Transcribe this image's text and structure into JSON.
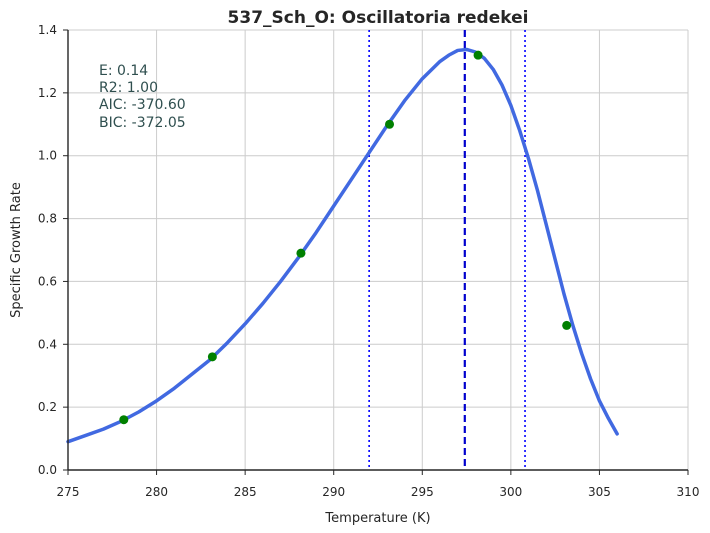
{
  "chart_data": {
    "type": "line",
    "title": "537_Sch_O: Oscillatoria redekei",
    "xlabel": "Temperature (K)",
    "ylabel": "Specific Growth Rate",
    "xlim": [
      275,
      310
    ],
    "ylim": [
      0.0,
      1.4
    ],
    "x_ticks": [
      275,
      280,
      285,
      290,
      295,
      300,
      305,
      310
    ],
    "x_tick_labels": [
      "275",
      "280",
      "285",
      "290",
      "295",
      "300",
      "305",
      "310"
    ],
    "y_ticks": [
      0.0,
      0.2,
      0.4,
      0.6,
      0.8,
      1.0,
      1.2,
      1.4
    ],
    "y_tick_labels": [
      "0.0",
      "0.2",
      "0.4",
      "0.6",
      "0.8",
      "1.0",
      "1.2",
      "1.4"
    ],
    "grid": true,
    "annotations": [
      "E:  0.14",
      "R2:  1.00",
      "AIC: -370.60",
      "BIC: -372.05"
    ],
    "fit_curve": {
      "color": "#4169e1",
      "x": [
        275,
        276,
        277,
        278,
        279,
        280,
        281,
        282,
        283,
        284,
        285,
        286,
        287,
        288,
        289,
        290,
        291,
        292,
        293,
        294,
        295,
        296,
        296.5,
        297,
        297.5,
        298,
        298.5,
        299,
        299.5,
        300,
        300.5,
        301,
        301.5,
        302,
        302.5,
        303,
        303.5,
        304,
        304.5,
        305,
        305.5,
        306
      ],
      "y": [
        0.09,
        0.11,
        0.13,
        0.155,
        0.185,
        0.22,
        0.26,
        0.305,
        0.35,
        0.405,
        0.465,
        0.53,
        0.6,
        0.675,
        0.755,
        0.84,
        0.925,
        1.01,
        1.095,
        1.175,
        1.245,
        1.3,
        1.32,
        1.335,
        1.338,
        1.33,
        1.31,
        1.275,
        1.225,
        1.16,
        1.08,
        0.99,
        0.89,
        0.78,
        0.67,
        0.56,
        0.46,
        0.37,
        0.29,
        0.22,
        0.165,
        0.115
      ]
    },
    "data_points": {
      "color": "#008000",
      "x": [
        278.15,
        283.15,
        288.15,
        293.15,
        298.15,
        303.15
      ],
      "y": [
        0.16,
        0.36,
        0.69,
        1.1,
        1.32,
        0.46
      ]
    },
    "vertical_lines": [
      {
        "x": 292.0,
        "style": "dotted",
        "color": "#0000ff"
      },
      {
        "x": 297.4,
        "style": "dashed",
        "color": "#0000cd"
      },
      {
        "x": 300.8,
        "style": "dotted",
        "color": "#0000ff"
      }
    ]
  }
}
